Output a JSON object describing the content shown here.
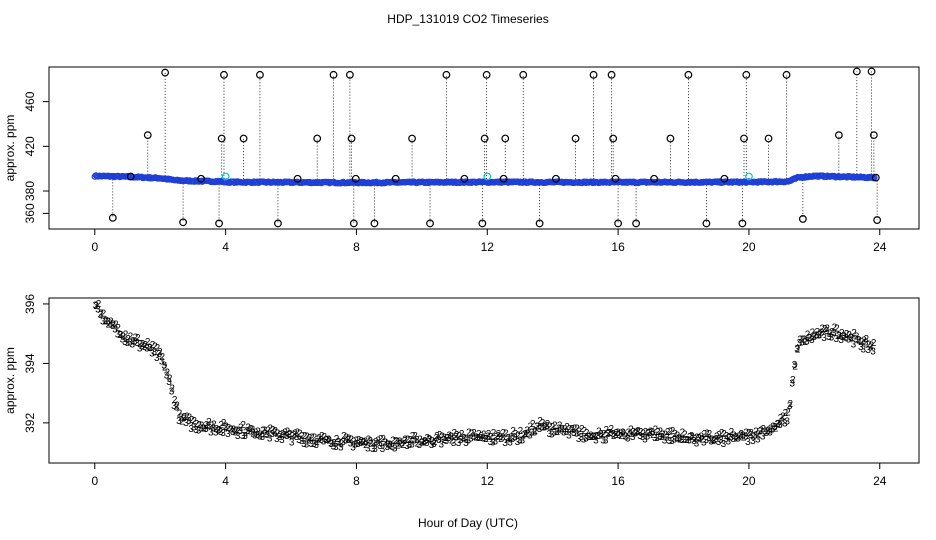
{
  "title": "HDP_131019  CO2 Timeseries",
  "xlabel": "Hour of Day (UTC)",
  "colors": {
    "raw_marker": "#000000",
    "flagged_marker": "#00cccc",
    "main_series": "#1f3fd6",
    "green_series": "#22cc22",
    "blue_series": "#0000cc"
  },
  "chart_data": [
    {
      "type": "scatter",
      "name": "top-panel",
      "ylabel": "approx. ppm",
      "xlim": [
        -1.4,
        25.2
      ],
      "ylim": [
        346,
        491
      ],
      "xticks": [
        0,
        4,
        8,
        12,
        16,
        20,
        24
      ],
      "yticks": [
        360,
        380,
        420,
        460
      ],
      "series": [
        {
          "marker": "circle",
          "points": [
            [
              0.55,
              356
            ],
            [
              1.1,
              393
            ],
            [
              1.62,
              430
            ],
            [
              2.15,
              486
            ],
            [
              2.7,
              352
            ],
            [
              3.25,
              391
            ],
            [
              3.8,
              351
            ],
            [
              3.88,
              427
            ],
            [
              3.95,
              484
            ],
            [
              4.55,
              427
            ],
            [
              5.05,
              484
            ],
            [
              5.6,
              351
            ],
            [
              6.2,
              391
            ],
            [
              6.8,
              427
            ],
            [
              7.3,
              484
            ],
            [
              7.8,
              484
            ],
            [
              7.85,
              427
            ],
            [
              7.92,
              351
            ],
            [
              7.98,
              391
            ],
            [
              8.55,
              351
            ],
            [
              9.2,
              391
            ],
            [
              9.7,
              427
            ],
            [
              10.25,
              351
            ],
            [
              10.75,
              484
            ],
            [
              11.3,
              391
            ],
            [
              11.85,
              351
            ],
            [
              11.92,
              427
            ],
            [
              11.98,
              484
            ],
            [
              12.5,
              391
            ],
            [
              12.55,
              427
            ],
            [
              13.1,
              484
            ],
            [
              13.6,
              351
            ],
            [
              14.1,
              391
            ],
            [
              14.7,
              427
            ],
            [
              15.25,
              484
            ],
            [
              15.8,
              484
            ],
            [
              15.85,
              427
            ],
            [
              15.92,
              391
            ],
            [
              16.0,
              351
            ],
            [
              16.55,
              351
            ],
            [
              17.1,
              391
            ],
            [
              17.6,
              427
            ],
            [
              18.15,
              484
            ],
            [
              18.7,
              351
            ],
            [
              19.25,
              391
            ],
            [
              19.8,
              351
            ],
            [
              19.85,
              427
            ],
            [
              19.92,
              484
            ],
            [
              20.6,
              427
            ],
            [
              21.15,
              484
            ],
            [
              21.65,
              355
            ],
            [
              22.75,
              430
            ],
            [
              23.3,
              487
            ],
            [
              23.75,
              487
            ],
            [
              23.82,
              430
            ],
            [
              23.88,
              392
            ],
            [
              23.92,
              354
            ]
          ]
        }
      ],
      "main_series": {
        "marker": "circle",
        "baseline": [
          [
            0.0,
            393.5
          ],
          [
            1.0,
            392.8
          ],
          [
            2.0,
            391.5
          ],
          [
            2.5,
            389.5
          ],
          [
            3.0,
            389.0
          ],
          [
            3.9,
            388.5
          ],
          [
            4.0,
            388.0
          ],
          [
            8.0,
            387.5
          ],
          [
            12.0,
            388.0
          ],
          [
            16.0,
            387.8
          ],
          [
            20.0,
            388.0
          ],
          [
            21.2,
            388.5
          ],
          [
            21.5,
            392.0
          ],
          [
            22.0,
            393.5
          ],
          [
            23.8,
            392.0
          ]
        ]
      },
      "flagged_points": [
        [
          4.0,
          393
        ],
        [
          12.0,
          393
        ],
        [
          20.0,
          393
        ]
      ]
    },
    {
      "type": "scatter",
      "name": "bottom-panel",
      "ylabel": "approx. ppm",
      "xlim": [
        -1.4,
        25.2
      ],
      "ylim": [
        390.65,
        396.2
      ],
      "xticks": [
        0,
        4,
        8,
        12,
        16,
        20,
        24
      ],
      "yticks": [
        392,
        394,
        396
      ],
      "series": [
        {
          "marker": "3",
          "color_key": "blue_series",
          "curve": [
            [
              0.0,
              396.0
            ],
            [
              0.2,
              395.6
            ],
            [
              0.5,
              395.2
            ],
            [
              1.0,
              394.8
            ],
            [
              1.6,
              394.5
            ],
            [
              2.0,
              394.2
            ],
            [
              2.2,
              393.6
            ],
            [
              2.4,
              392.8
            ],
            [
              2.6,
              392.1
            ],
            [
              3.0,
              391.9
            ],
            [
              4.0,
              391.75
            ],
            [
              5.0,
              391.65
            ],
            [
              6.0,
              391.5
            ],
            [
              7.0,
              391.35
            ],
            [
              8.0,
              391.3
            ],
            [
              9.0,
              391.25
            ],
            [
              10.0,
              391.35
            ],
            [
              11.0,
              391.45
            ],
            [
              12.0,
              391.45
            ],
            [
              13.0,
              391.5
            ],
            [
              13.6,
              391.85
            ],
            [
              14.2,
              391.7
            ],
            [
              15.0,
              391.55
            ],
            [
              16.0,
              391.55
            ],
            [
              17.0,
              391.6
            ],
            [
              18.0,
              391.45
            ],
            [
              19.0,
              391.4
            ],
            [
              20.0,
              391.5
            ],
            [
              20.8,
              391.8
            ],
            [
              21.2,
              392.2
            ],
            [
              21.35,
              393.6
            ],
            [
              21.5,
              394.6
            ],
            [
              22.0,
              394.9
            ],
            [
              22.5,
              395.0
            ],
            [
              23.0,
              394.9
            ],
            [
              23.5,
              394.6
            ],
            [
              23.8,
              394.5
            ]
          ]
        },
        {
          "marker": "2",
          "color_key": "green_series",
          "offset": 0.12
        }
      ]
    }
  ]
}
